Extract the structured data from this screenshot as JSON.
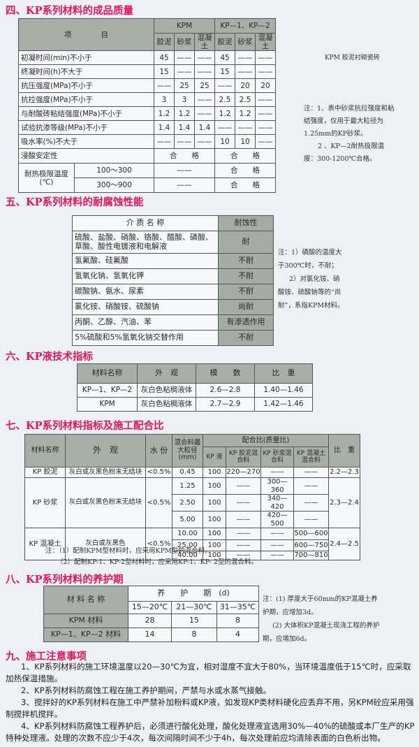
{
  "s4": {
    "title": "四、KP系列材料的成品质量",
    "h_item": "项　　　　目",
    "h_kpm": "KPM",
    "h_kp12": "KP—1、KP—2",
    "sub": [
      "胶泥",
      "砂浆",
      "混凝土",
      "胶泥",
      "砂浆",
      "混凝土"
    ],
    "rows": [
      {
        "label": "初凝时间(min)不小于",
        "v": [
          "45",
          "——",
          "——",
          "45",
          "——",
          "——"
        ]
      },
      {
        "label": "终凝时间(h)不大于",
        "v": [
          "15",
          "——",
          "——",
          "15",
          "——",
          "——"
        ]
      },
      {
        "label": "抗压强度(MPa)不小于",
        "v": [
          "——",
          "25",
          "25",
          "——",
          "20",
          "20"
        ]
      },
      {
        "label": "抗拉强度(MPa)不小于",
        "v": [
          "3",
          "3",
          "——",
          "2.5",
          "2.5",
          "——"
        ]
      },
      {
        "label": "与耐酸砖粘结强度(MPa)不小于",
        "v": [
          "1.2",
          "1.2",
          "——",
          "1.2",
          "1.2",
          "——"
        ]
      },
      {
        "label": "试验抗渗等级(MPa)不小于",
        "v": [
          "1.4",
          "1.4",
          "1.4",
          "——",
          "——",
          "——"
        ]
      },
      {
        "label": "吸水率(%)不大于",
        "v": [
          "——",
          "——",
          "——",
          "10",
          "10",
          "——"
        ]
      }
    ],
    "acid_label": "浸酸安定性",
    "acid_kpm": "合　　格",
    "acid_kp": "合　　格",
    "heat_label": "耐热极限温度(℃)",
    "heat_rows": [
      {
        "range": "100～300",
        "kpm": "——",
        "kp": "合　　格"
      },
      {
        "range": "300～900",
        "kpm": "——",
        "kp": "合　　格"
      }
    ],
    "caption": "KPM 胶泥衬砌瓷砖",
    "notes": [
      "注：1、表中砂浆抗拉强度和粘结强度，仅用于最大粒径为1.25mm的KP砂浆。",
      "2 、KP—2耐热极限温度：300-1200℃合格。"
    ]
  },
  "s5": {
    "title": "五、KP系列材料的耐腐蚀性能",
    "h_medium": "介 质 名 称",
    "h_res": "耐蚀性",
    "rows": [
      {
        "m": "硫酸、盐酸、硝酸、铬酸、醋酸、磷酸、草酸、酸性电镀液和电解液",
        "r": "耐"
      },
      {
        "m": "氢氟酸、硅氟酸",
        "r": "不耐"
      },
      {
        "m": "氢氧化钠、氢氧化钾",
        "r": "不耐"
      },
      {
        "m": "碳酸钠、氨水、尿素",
        "r": "不耐"
      },
      {
        "m": "氯化铵、硝酸铵、硫酸钠",
        "r": "尚耐"
      },
      {
        "m": "丙酮、乙醇、汽油、苯",
        "r": "有渗透作用"
      },
      {
        "m": "5%硫酸和5%氢氧化钠交替作用",
        "r": "不耐"
      }
    ],
    "notes": [
      "注：1）磷酸的温度大于300℃时，不耐；",
      "2）对氯化铵、硝酸铵、硫酸钠等的“尚耐”，系指KPM材料。"
    ]
  },
  "s6": {
    "title": "六、KP液技术指标",
    "headers": [
      "材料名称",
      "外　观",
      "模　　数",
      "比　重"
    ],
    "rows": [
      [
        "KP—1、KP—2",
        "灰白色粘稠液体",
        "2.6—2.8",
        "1.40—1.46"
      ],
      [
        "KPM",
        "灰白色粘稠液体",
        "2.7—2.9",
        "1.42—1.46"
      ]
    ]
  },
  "s7": {
    "title": "七、KP系列材料指标及施工配合比",
    "h": {
      "name": "材料名称",
      "look": "外　观",
      "water": "水 份",
      "size": "混合料最大粒径(mm)",
      "ratio": "配合比(质量比)",
      "kp": "KP 液",
      "jn": "KP 胶泥混合料",
      "sj": "KP 砂浆混合料",
      "hnt": "KP 混凝土混合料",
      "sg": "比　重"
    },
    "groups": [
      {
        "name": "KP 胶泥",
        "look": "灰白或灰黑色粉末无结块",
        "water": "<0.5%",
        "sg": "2.2—2.3",
        "rows": [
          [
            "0.45",
            "100",
            "220—270",
            "——",
            "——"
          ]
        ]
      },
      {
        "name": "KP 砂浆",
        "look": "灰白或灰黑色粉末无结块",
        "water": "<0.5%",
        "sg": "2.3—2.4",
        "rows": [
          [
            "1.25",
            "100",
            "——",
            "300—360",
            "——"
          ],
          [
            "2.50",
            "100",
            "——",
            "340—420",
            "——"
          ],
          [
            "5.00",
            "100",
            "——",
            "420—500",
            "——"
          ]
        ]
      },
      {
        "name": "KP 混凝土",
        "look": "灰白或灰黑色",
        "water": "<0.5%",
        "sg": "2.4—2.5",
        "rows": [
          [
            "10.00",
            "100",
            "——",
            "——",
            "500—600"
          ],
          [
            "25.00",
            "100",
            "——",
            "——",
            "600—750"
          ],
          [
            "40.00",
            "100",
            "——",
            "——",
            "700—810"
          ]
        ]
      }
    ],
    "notes": [
      "注：（1）配制KPM型材料时，应采用KPM型的混合料。",
      "（2）配制KP-1、KP-2型材料时，应采用KP-1、KP- 2型的混合料。"
    ]
  },
  "s8": {
    "title": "八、KP系列材料的养护期",
    "h_name": "材 料 名 称",
    "h_period": "养　　护　　期　(d)",
    "temps": [
      "15—20℃",
      "21—30℃",
      "31—35℃"
    ],
    "rows": [
      {
        "name": "KPM 材料",
        "v": [
          "28",
          "15",
          "8"
        ]
      },
      {
        "name": "KP—1、KP—2 材料",
        "v": [
          "14",
          "8",
          "4"
        ]
      }
    ],
    "notes": [
      "注：(1) 厚度大于60mm的KP混凝土养护期，应增加3d。",
      "(2) 大体积KP混凝土现浇工程的养护期，应增加6d。"
    ]
  },
  "s9": {
    "title": "九、施工注意事项",
    "items": [
      "1、KP系列材料的施工环境温度以20—30℃为宜，相对湿度不宜大于80%，当环境温度低于15℃时，应采取加热保温措施。",
      "2、KP系列材料防腐蚀工程在施工养护期间，严禁与水或水蒸气接触。",
      "3、搅拌好的KP系列材料在施工中严禁补加粉料或KP液，如发现KP类材料硬化应丢弃不用，另KPM砼应采用强制搅拌机搅拌。",
      "4、KP系列材料防腐蚀工程养护后，必须进行酸化处理，酸化处理液宜选用30%—40%的硫酸或本厂生产的KP特种处理液。处理的次数不应少于4次，每次间隔时间不少于4h，每次处理前应均清除表面的白色析出物。"
    ]
  }
}
